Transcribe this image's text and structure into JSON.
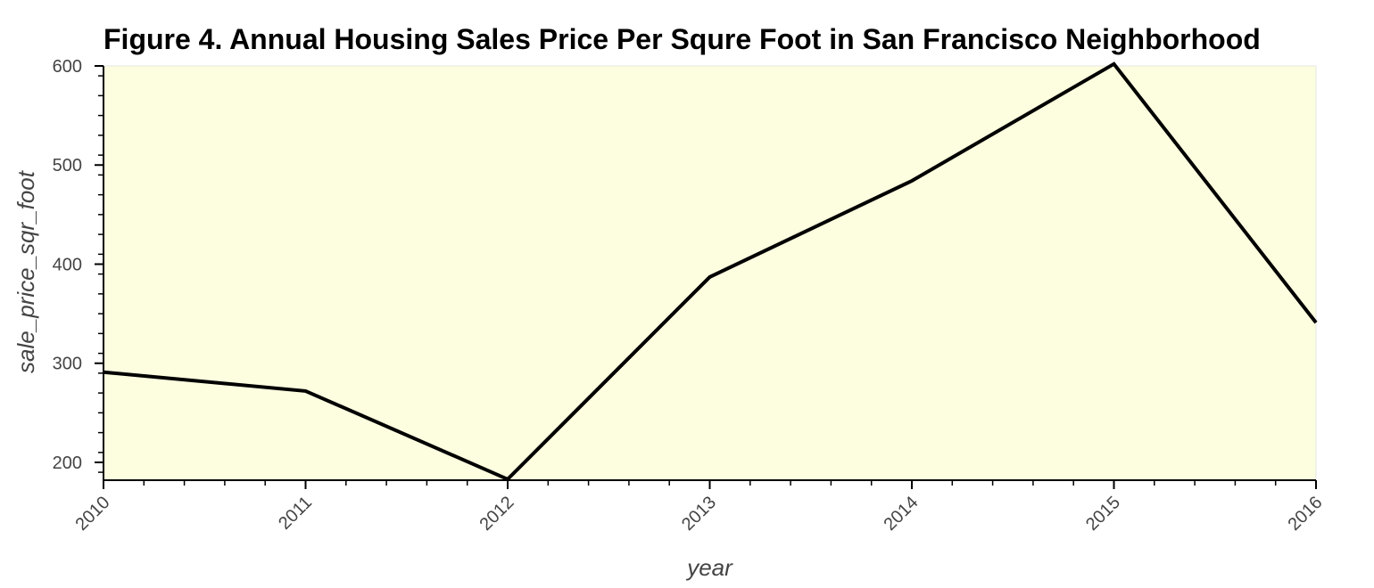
{
  "chart_data": {
    "type": "line",
    "title": "Figure 4. Annual Housing Sales Price Per Squre Foot in San Francisco Neighborhood",
    "xlabel": "year",
    "ylabel": "sale_price_sqr_foot",
    "x": [
      2010,
      2011,
      2012,
      2013,
      2014,
      2015,
      2016
    ],
    "x_tick_labels": [
      "2010",
      "2011",
      "2012",
      "2013",
      "2014",
      "2015",
      "2016"
    ],
    "y_ticks": [
      200,
      300,
      400,
      500,
      600
    ],
    "y_tick_labels": [
      "200",
      "300",
      "400",
      "500",
      "600"
    ],
    "xlim": [
      2010,
      2016
    ],
    "ylim": [
      182,
      600
    ],
    "grid": false,
    "series": [
      {
        "values": [
          291,
          272,
          183,
          387,
          484,
          602,
          341
        ],
        "color": "#000000"
      }
    ],
    "colors": {
      "plot_background": "#fdfddf",
      "line": "#000000",
      "axis": "#000000",
      "text": "#444444"
    }
  }
}
